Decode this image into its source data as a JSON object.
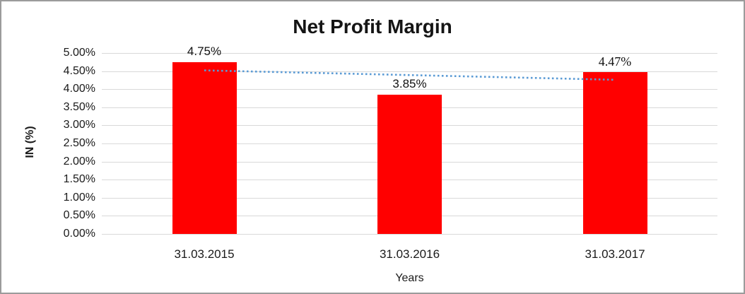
{
  "chart_data": {
    "type": "bar",
    "title": "Net Profit Margin",
    "categories": [
      "31.03.2015",
      "31.03.2016",
      "31.03.2017"
    ],
    "values": [
      4.75,
      3.85,
      4.47
    ],
    "value_labels": [
      "4.75%",
      "3.85%",
      "4.47%"
    ],
    "value_label_styles": [
      "sans",
      "sans",
      "serif"
    ],
    "xlabel": "Years",
    "ylabel": "IN (%)",
    "ylim": [
      0,
      5
    ],
    "ytick_step": 0.5,
    "ytick_labels": [
      "5.00%",
      "4.50%",
      "4.00%",
      "3.50%",
      "3.00%",
      "2.50%",
      "2.00%",
      "1.50%",
      "1.00%",
      "0.50%",
      "0.00%"
    ],
    "grid": true,
    "legend": "none",
    "bar_color": "#ff0000",
    "gridline_color": "#d9d9d9",
    "trendline": {
      "type": "linear",
      "style": "dotted",
      "color": "#5b9bd5",
      "start_value": 4.52,
      "end_value": 4.26
    }
  }
}
